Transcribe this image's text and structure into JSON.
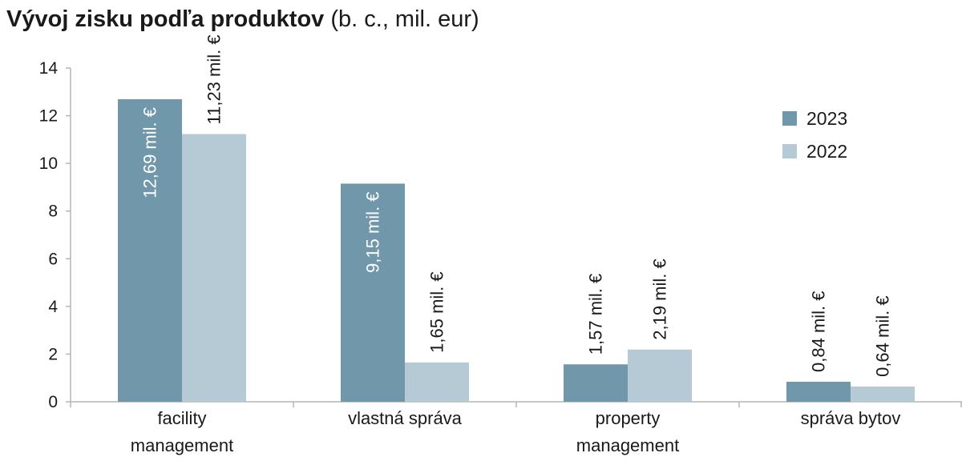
{
  "title": {
    "main": "Vývoj zisku podľa produktov",
    "sub": "(b. c., mil. eur)"
  },
  "chart_data": {
    "type": "bar",
    "title": "Vývoj zisku podľa produktov (b. c., mil. eur)",
    "categories": [
      [
        "facility",
        "management"
      ],
      [
        "vlastná správa"
      ],
      [
        "property",
        "management"
      ],
      [
        "správa bytov"
      ]
    ],
    "series": [
      {
        "name": "2023",
        "color": "#7097aa",
        "values": [
          12.69,
          9.15,
          1.57,
          0.84
        ],
        "labels": [
          "12,69 mil. €",
          "9,15 mil. €",
          "1,57 mil. €",
          "0,84 mil. €"
        ],
        "label_color": [
          "#ffffff",
          "#ffffff",
          "#1a1a1a",
          "#1a1a1a"
        ]
      },
      {
        "name": "2022",
        "color": "#b6cad5",
        "values": [
          11.23,
          1.65,
          2.19,
          0.64
        ],
        "labels": [
          "11,23 mil. €",
          "1,65 mil. €",
          "2,19 mil. €",
          "0,64 mil. €"
        ],
        "label_color": [
          "#1a1a1a",
          "#1a1a1a",
          "#1a1a1a",
          "#1a1a1a"
        ]
      }
    ],
    "yticks": [
      "0",
      "2",
      "4",
      "6",
      "8",
      "10",
      "12",
      "14"
    ],
    "ylim": [
      0,
      14
    ],
    "grid": false,
    "legend": "top-right",
    "axis_color": "#b5b5b5"
  }
}
